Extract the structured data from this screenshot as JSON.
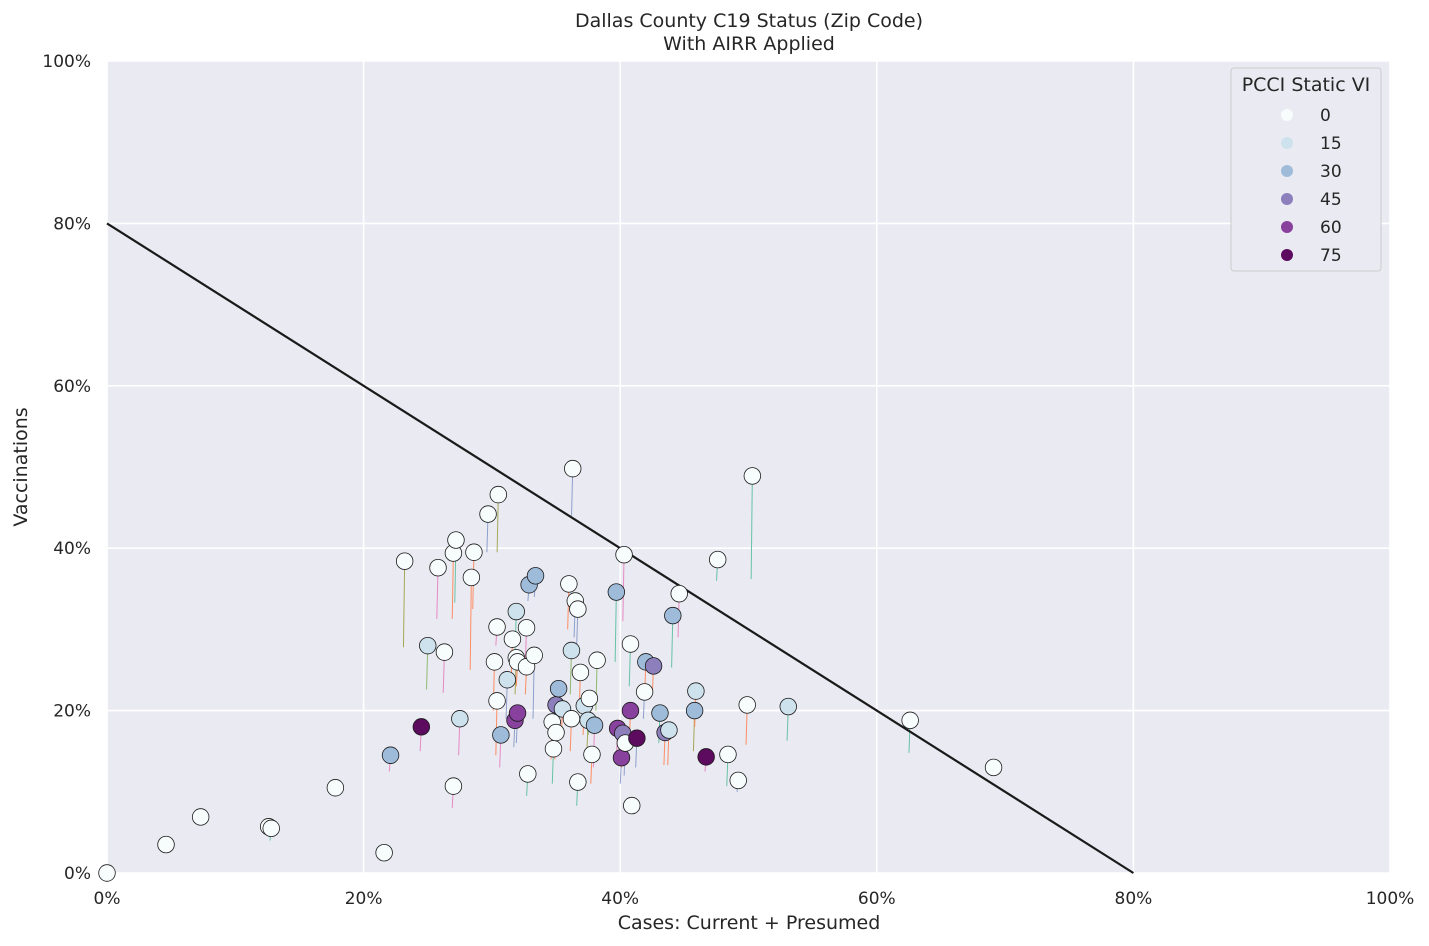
{
  "chart_data": {
    "type": "scatter",
    "title": "Dallas County C19 Status (Zip Code)",
    "subtitle": "With AIRR Applied",
    "xlabel": "Cases: Current + Presumed",
    "ylabel": "Vaccinations",
    "xlim": [
      0,
      1
    ],
    "ylim": [
      0,
      1
    ],
    "x_ticks": [
      {
        "v": 0,
        "label": "0%"
      },
      {
        "v": 0.2,
        "label": "20%"
      },
      {
        "v": 0.4,
        "label": "40%"
      },
      {
        "v": 0.6,
        "label": "60%"
      },
      {
        "v": 0.8,
        "label": "80%"
      },
      {
        "v": 1,
        "label": "100%"
      }
    ],
    "y_ticks": [
      {
        "v": 0,
        "label": "0%"
      },
      {
        "v": 0.2,
        "label": "20%"
      },
      {
        "v": 0.4,
        "label": "40%"
      },
      {
        "v": 0.6,
        "label": "60%"
      },
      {
        "v": 0.8,
        "label": "80%"
      },
      {
        "v": 1,
        "label": "100%"
      }
    ],
    "grid": true,
    "background": "#eaeaf2",
    "reference_line": {
      "from": [
        0,
        0.8
      ],
      "to": [
        0.8,
        0
      ],
      "color": "#1a1a1a"
    },
    "legend": {
      "title": "PCCI Static VI",
      "placement": "top-right",
      "entries": [
        {
          "label": "0",
          "color": "#f7fcfd"
        },
        {
          "label": "15",
          "color": "#cde2ec"
        },
        {
          "label": "30",
          "color": "#9ebcda"
        },
        {
          "label": "45",
          "color": "#8c7fbc"
        },
        {
          "label": "60",
          "color": "#88419d"
        },
        {
          "label": "75",
          "color": "#5c0b5e"
        }
      ]
    },
    "points": [
      {
        "x": 0.0,
        "y": 0.0,
        "vi": 0,
        "y0": 0.0,
        "stem": "#888888"
      },
      {
        "x": 0.046,
        "y": 0.035,
        "vi": 0,
        "y0": 0.035,
        "stem": "#888888"
      },
      {
        "x": 0.073,
        "y": 0.069,
        "vi": 0,
        "y0": 0.062,
        "stem": "#8fb870"
      },
      {
        "x": 0.126,
        "y": 0.057,
        "vi": 0,
        "y0": 0.05,
        "stem": "#8fb870"
      },
      {
        "x": 0.128,
        "y": 0.055,
        "vi": 0,
        "y0": 0.04,
        "stem": "#66c2a5"
      },
      {
        "x": 0.178,
        "y": 0.105,
        "vi": 0,
        "y0": 0.1,
        "stem": "#888888"
      },
      {
        "x": 0.216,
        "y": 0.025,
        "vi": 0,
        "y0": 0.025,
        "stem": "#888888"
      },
      {
        "x": 0.221,
        "y": 0.145,
        "vi": 30,
        "y0": 0.125,
        "stem": "#e78ac3"
      },
      {
        "x": 0.232,
        "y": 0.384,
        "vi": 0,
        "y0": 0.278,
        "stem": "#a6a854"
      },
      {
        "x": 0.25,
        "y": 0.28,
        "vi": 15,
        "y0": 0.226,
        "stem": "#8fb870"
      },
      {
        "x": 0.245,
        "y": 0.18,
        "vi": 75,
        "y0": 0.15,
        "stem": "#e78ac3"
      },
      {
        "x": 0.258,
        "y": 0.376,
        "vi": 0,
        "y0": 0.313,
        "stem": "#e78ac3"
      },
      {
        "x": 0.263,
        "y": 0.272,
        "vi": 0,
        "y0": 0.222,
        "stem": "#e78ac3"
      },
      {
        "x": 0.27,
        "y": 0.394,
        "vi": 0,
        "y0": 0.313,
        "stem": "#fc8d62"
      },
      {
        "x": 0.272,
        "y": 0.41,
        "vi": 0,
        "y0": 0.333,
        "stem": "#66c2a5"
      },
      {
        "x": 0.27,
        "y": 0.107,
        "vi": 0,
        "y0": 0.08,
        "stem": "#e78ac3"
      },
      {
        "x": 0.275,
        "y": 0.19,
        "vi": 15,
        "y0": 0.145,
        "stem": "#e78ac3"
      },
      {
        "x": 0.284,
        "y": 0.364,
        "vi": 0,
        "y0": 0.25,
        "stem": "#fc8d62"
      },
      {
        "x": 0.286,
        "y": 0.395,
        "vi": 0,
        "y0": 0.325,
        "stem": "#fc8d62"
      },
      {
        "x": 0.297,
        "y": 0.442,
        "vi": 0,
        "y0": 0.395,
        "stem": "#8da0cb"
      },
      {
        "x": 0.305,
        "y": 0.466,
        "vi": 0,
        "y0": 0.395,
        "stem": "#a6a854"
      },
      {
        "x": 0.302,
        "y": 0.26,
        "vi": 0,
        "y0": 0.2,
        "stem": "#fc8d62"
      },
      {
        "x": 0.304,
        "y": 0.212,
        "vi": 0,
        "y0": 0.145,
        "stem": "#fc8d62"
      },
      {
        "x": 0.304,
        "y": 0.303,
        "vi": 0,
        "y0": 0.28,
        "stem": "#e78ac3"
      },
      {
        "x": 0.307,
        "y": 0.17,
        "vi": 30,
        "y0": 0.13,
        "stem": "#e78ac3"
      },
      {
        "x": 0.312,
        "y": 0.238,
        "vi": 15,
        "y0": 0.19,
        "stem": "#8da0cb"
      },
      {
        "x": 0.316,
        "y": 0.288,
        "vi": 0,
        "y0": 0.24,
        "stem": "#fc8d62"
      },
      {
        "x": 0.318,
        "y": 0.188,
        "vi": 60,
        "y0": 0.155,
        "stem": "#8da0cb"
      },
      {
        "x": 0.319,
        "y": 0.322,
        "vi": 15,
        "y0": 0.27,
        "stem": "#66c2a5"
      },
      {
        "x": 0.319,
        "y": 0.265,
        "vi": 0,
        "y0": 0.22,
        "stem": "#a6a854"
      },
      {
        "x": 0.32,
        "y": 0.26,
        "vi": 0,
        "y0": 0.23,
        "stem": "#fc8d62"
      },
      {
        "x": 0.32,
        "y": 0.197,
        "vi": 60,
        "y0": 0.16,
        "stem": "#8da0cb"
      },
      {
        "x": 0.327,
        "y": 0.302,
        "vi": 0,
        "y0": 0.26,
        "stem": "#e78ac3"
      },
      {
        "x": 0.327,
        "y": 0.254,
        "vi": 0,
        "y0": 0.22,
        "stem": "#fc8d62"
      },
      {
        "x": 0.328,
        "y": 0.122,
        "vi": 0,
        "y0": 0.095,
        "stem": "#66c2a5"
      },
      {
        "x": 0.329,
        "y": 0.355,
        "vi": 30,
        "y0": 0.335,
        "stem": "#8da0cb"
      },
      {
        "x": 0.333,
        "y": 0.268,
        "vi": 0,
        "y0": 0.19,
        "stem": "#8da0cb"
      },
      {
        "x": 0.334,
        "y": 0.366,
        "vi": 30,
        "y0": 0.34,
        "stem": "#8da0cb"
      },
      {
        "x": 0.347,
        "y": 0.186,
        "vi": 0,
        "y0": 0.14,
        "stem": "#fc8d62"
      },
      {
        "x": 0.348,
        "y": 0.153,
        "vi": 0,
        "y0": 0.11,
        "stem": "#66c2a5"
      },
      {
        "x": 0.35,
        "y": 0.207,
        "vi": 45,
        "y0": 0.16,
        "stem": "#e78ac3"
      },
      {
        "x": 0.35,
        "y": 0.173,
        "vi": 0,
        "y0": 0.14,
        "stem": "#fc8d62"
      },
      {
        "x": 0.352,
        "y": 0.227,
        "vi": 30,
        "y0": 0.18,
        "stem": "#8da0cb"
      },
      {
        "x": 0.355,
        "y": 0.202,
        "vi": 15,
        "y0": 0.17,
        "stem": "#fc8d62"
      },
      {
        "x": 0.36,
        "y": 0.356,
        "vi": 0,
        "y0": 0.3,
        "stem": "#fc8d62"
      },
      {
        "x": 0.362,
        "y": 0.274,
        "vi": 15,
        "y0": 0.22,
        "stem": "#8fb870"
      },
      {
        "x": 0.362,
        "y": 0.19,
        "vi": 0,
        "y0": 0.15,
        "stem": "#fc8d62"
      },
      {
        "x": 0.363,
        "y": 0.498,
        "vi": 0,
        "y0": 0.44,
        "stem": "#8da0cb"
      },
      {
        "x": 0.365,
        "y": 0.335,
        "vi": 0,
        "y0": 0.29,
        "stem": "#8da0cb"
      },
      {
        "x": 0.367,
        "y": 0.325,
        "vi": 0,
        "y0": 0.28,
        "stem": "#8da0cb"
      },
      {
        "x": 0.367,
        "y": 0.112,
        "vi": 0,
        "y0": 0.083,
        "stem": "#66c2a5"
      },
      {
        "x": 0.369,
        "y": 0.247,
        "vi": 0,
        "y0": 0.2,
        "stem": "#fc8d62"
      },
      {
        "x": 0.372,
        "y": 0.206,
        "vi": 15,
        "y0": 0.17,
        "stem": "#fc8d62"
      },
      {
        "x": 0.375,
        "y": 0.188,
        "vi": 15,
        "y0": 0.15,
        "stem": "#a6a854"
      },
      {
        "x": 0.376,
        "y": 0.215,
        "vi": 0,
        "y0": 0.17,
        "stem": "#8fb870"
      },
      {
        "x": 0.378,
        "y": 0.146,
        "vi": 0,
        "y0": 0.11,
        "stem": "#fc8d62"
      },
      {
        "x": 0.38,
        "y": 0.182,
        "vi": 30,
        "y0": 0.13,
        "stem": "#e78ac3"
      },
      {
        "x": 0.382,
        "y": 0.262,
        "vi": 0,
        "y0": 0.2,
        "stem": "#8fb870"
      },
      {
        "x": 0.397,
        "y": 0.346,
        "vi": 30,
        "y0": 0.26,
        "stem": "#66c2a5"
      },
      {
        "x": 0.398,
        "y": 0.178,
        "vi": 60,
        "y0": 0.14,
        "stem": "#e78ac3"
      },
      {
        "x": 0.401,
        "y": 0.142,
        "vi": 60,
        "y0": 0.11,
        "stem": "#8da0cb"
      },
      {
        "x": 0.402,
        "y": 0.172,
        "vi": 45,
        "y0": 0.13,
        "stem": "#fc8d62"
      },
      {
        "x": 0.403,
        "y": 0.392,
        "vi": 0,
        "y0": 0.31,
        "stem": "#e78ac3"
      },
      {
        "x": 0.404,
        "y": 0.16,
        "vi": 0,
        "y0": 0.12,
        "stem": "#8da0cb"
      },
      {
        "x": 0.408,
        "y": 0.2,
        "vi": 60,
        "y0": 0.16,
        "stem": "#fc8d62"
      },
      {
        "x": 0.408,
        "y": 0.282,
        "vi": 0,
        "y0": 0.23,
        "stem": "#66c2a5"
      },
      {
        "x": 0.409,
        "y": 0.083,
        "vi": 0,
        "y0": 0.083,
        "stem": "#888888"
      },
      {
        "x": 0.413,
        "y": 0.166,
        "vi": 75,
        "y0": 0.13,
        "stem": "#8da0cb"
      },
      {
        "x": 0.419,
        "y": 0.223,
        "vi": 0,
        "y0": 0.19,
        "stem": "#8da0cb"
      },
      {
        "x": 0.42,
        "y": 0.26,
        "vi": 30,
        "y0": 0.22,
        "stem": "#fc8d62"
      },
      {
        "x": 0.426,
        "y": 0.255,
        "vi": 45,
        "y0": 0.22,
        "stem": "#fc8d62"
      },
      {
        "x": 0.431,
        "y": 0.197,
        "vi": 30,
        "y0": 0.16,
        "stem": "#66c2a5"
      },
      {
        "x": 0.435,
        "y": 0.173,
        "vi": 45,
        "y0": 0.133,
        "stem": "#fc8d62"
      },
      {
        "x": 0.438,
        "y": 0.176,
        "vi": 15,
        "y0": 0.133,
        "stem": "#fc8d62"
      },
      {
        "x": 0.441,
        "y": 0.317,
        "vi": 30,
        "y0": 0.253,
        "stem": "#66c2a5"
      },
      {
        "x": 0.446,
        "y": 0.344,
        "vi": 0,
        "y0": 0.29,
        "stem": "#e78ac3"
      },
      {
        "x": 0.458,
        "y": 0.2,
        "vi": 30,
        "y0": 0.15,
        "stem": "#a6a854"
      },
      {
        "x": 0.459,
        "y": 0.224,
        "vi": 15,
        "y0": 0.18,
        "stem": "#fc8d62"
      },
      {
        "x": 0.467,
        "y": 0.143,
        "vi": 75,
        "y0": 0.125,
        "stem": "#e78ac3"
      },
      {
        "x": 0.476,
        "y": 0.386,
        "vi": 0,
        "y0": 0.36,
        "stem": "#66c2a5"
      },
      {
        "x": 0.484,
        "y": 0.146,
        "vi": 0,
        "y0": 0.107,
        "stem": "#66c2a5"
      },
      {
        "x": 0.492,
        "y": 0.114,
        "vi": 0,
        "y0": 0.1,
        "stem": "#8da0cb"
      },
      {
        "x": 0.499,
        "y": 0.207,
        "vi": 0,
        "y0": 0.158,
        "stem": "#fc8d62"
      },
      {
        "x": 0.503,
        "y": 0.489,
        "vi": 0,
        "y0": 0.362,
        "stem": "#66c2a5"
      },
      {
        "x": 0.531,
        "y": 0.205,
        "vi": 15,
        "y0": 0.163,
        "stem": "#66c2a5"
      },
      {
        "x": 0.626,
        "y": 0.188,
        "vi": 0,
        "y0": 0.148,
        "stem": "#66c2a5"
      },
      {
        "x": 0.691,
        "y": 0.13,
        "vi": 0,
        "y0": 0.125,
        "stem": "#888888"
      }
    ]
  }
}
